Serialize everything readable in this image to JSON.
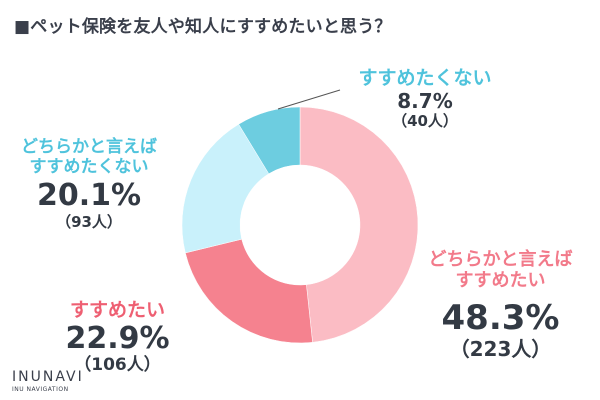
{
  "title": "■ペット保険を友人や知人にすすめたいと思う？",
  "chart_data": {
    "type": "pie",
    "title": "■ペット保険を友人や知人にすすめたいと思う？",
    "donut": true,
    "start": "12 o'clock, clockwise",
    "categories": [
      "どちらかと言えばすすめたい",
      "すすめたい",
      "どちらかと言えばすすめたくない",
      "すすめたくない"
    ],
    "slices": [
      {
        "label_lines": [
          "どちらかと言えば",
          "すすめたい"
        ],
        "percent_label": "48.3%",
        "count_label": "（223人）",
        "value": 48.3,
        "count": 223,
        "color": "#fbbcc4"
      },
      {
        "label_lines": [
          "すすめたい"
        ],
        "percent_label": "22.9%",
        "count_label": "（106人）",
        "value": 22.9,
        "count": 106,
        "color": "#f5828f"
      },
      {
        "label_lines": [
          "どちらかと言えば",
          "すすめたくない"
        ],
        "percent_label": "20.1%",
        "count_label": "（93人）",
        "value": 20.1,
        "count": 93,
        "color": "#c9f1fb"
      },
      {
        "label_lines": [
          "すすめたくない"
        ],
        "percent_label": "8.7%",
        "count_label": "（40人）",
        "value": 8.7,
        "count": 40,
        "color": "#6dcde0"
      }
    ]
  },
  "branding": {
    "logo": "INUNAVI",
    "tagline": "INU NAVIGATION"
  }
}
